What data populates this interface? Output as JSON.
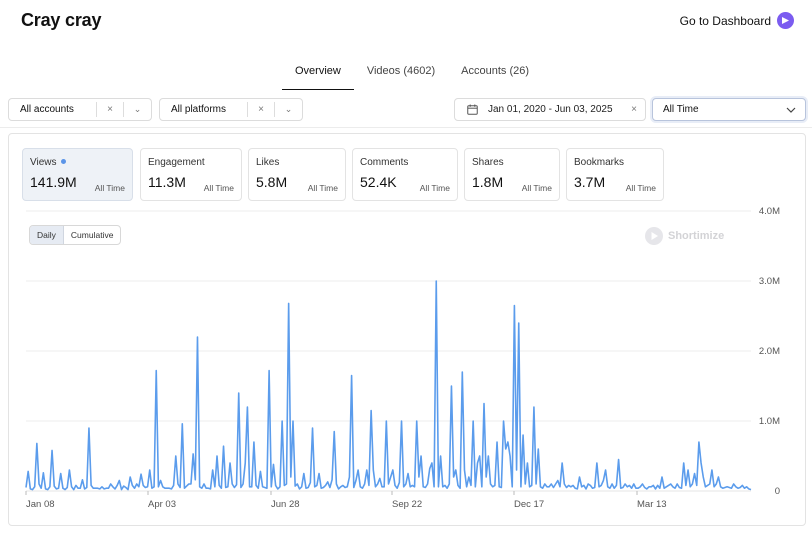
{
  "header": {
    "title": "Cray cray",
    "dashboard_link": "Go to Dashboard"
  },
  "tabs": [
    {
      "label": "Overview",
      "active": true
    },
    {
      "label": "Videos (4602)",
      "active": false
    },
    {
      "label": "Accounts (26)",
      "active": false
    }
  ],
  "filters": {
    "accounts": "All accounts",
    "platforms": "All platforms",
    "date_range": "Jan 01, 2020 - Jun 03, 2025",
    "time_range": "All Time"
  },
  "icons": {
    "clear": "×",
    "chevron": "⌄",
    "calendar": "calendar-icon"
  },
  "metrics": [
    {
      "name": "Views",
      "value": "141.9M",
      "period": "All Time",
      "active": true
    },
    {
      "name": "Engagement",
      "value": "11.3M",
      "period": "All Time"
    },
    {
      "name": "Likes",
      "value": "5.8M",
      "period": "All Time"
    },
    {
      "name": "Comments",
      "value": "52.4K",
      "period": "All Time"
    },
    {
      "name": "Shares",
      "value": "1.8M",
      "period": "All Time"
    },
    {
      "name": "Bookmarks",
      "value": "3.7M",
      "period": "All Time"
    }
  ],
  "chart_toggle": {
    "daily": "Daily",
    "cumulative": "Cumulative"
  },
  "watermark": "Shortimize",
  "colors": {
    "line": "#5b9cec",
    "accent": "#7b5cf0"
  },
  "chart_data": {
    "type": "line",
    "x_tick_labels": [
      "Jan 08",
      "Apr 03",
      "Jun 28",
      "Sep 22",
      "Dec 17",
      "Mar 13"
    ],
    "y_tick_labels": [
      "0",
      "1.0M",
      "2.0M",
      "3.0M",
      "4.0M"
    ],
    "ylim": [
      0,
      4000000
    ],
    "grid": true,
    "series": [
      {
        "values": [
          50000,
          280000,
          30000,
          20000,
          60000,
          680000,
          100000,
          40000,
          260000,
          30000,
          20000,
          60000,
          580000,
          70000,
          30000,
          40000,
          250000,
          40000,
          20000,
          50000,
          300000,
          60000,
          20000,
          80000,
          40000,
          40000,
          160000,
          30000,
          50000,
          900000,
          80000,
          40000,
          40000,
          40000,
          30000,
          60000,
          30000,
          40000,
          40000,
          100000,
          60000,
          30000,
          80000,
          150000,
          20000,
          70000,
          50000,
          20000,
          200000,
          80000,
          40000,
          100000,
          60000,
          240000,
          80000,
          50000,
          60000,
          300000,
          40000,
          60000,
          1720000,
          60000,
          150000,
          60000,
          40000,
          40000,
          40000,
          30000,
          80000,
          500000,
          100000,
          50000,
          960000,
          40000,
          70000,
          100000,
          100000,
          530000,
          160000,
          2200000,
          60000,
          40000,
          100000,
          40000,
          40000,
          30000,
          300000,
          60000,
          500000,
          80000,
          40000,
          640000,
          50000,
          60000,
          400000,
          100000,
          50000,
          90000,
          1400000,
          50000,
          100000,
          400000,
          1200000,
          60000,
          60000,
          700000,
          80000,
          40000,
          280000,
          60000,
          50000,
          40000,
          1720000,
          60000,
          380000,
          80000,
          30000,
          60000,
          1000000,
          80000,
          100000,
          2680000,
          200000,
          1000000,
          70000,
          100000,
          30000,
          60000,
          250000,
          40000,
          50000,
          120000,
          900000,
          60000,
          80000,
          250000,
          40000,
          50000,
          80000,
          130000,
          50000,
          160000,
          850000,
          100000,
          30000,
          60000,
          80000,
          50000,
          60000,
          200000,
          1650000,
          50000,
          150000,
          300000,
          60000,
          40000,
          100000,
          300000,
          80000,
          1150000,
          300000,
          60000,
          100000,
          180000,
          60000,
          60000,
          1000000,
          100000,
          200000,
          300000,
          80000,
          40000,
          120000,
          1000000,
          60000,
          100000,
          250000,
          60000,
          80000,
          60000,
          1000000,
          200000,
          500000,
          60000,
          50000,
          100000,
          320000,
          400000,
          60000,
          3000000,
          60000,
          500000,
          60000,
          80000,
          40000,
          100000,
          1500000,
          200000,
          300000,
          80000,
          40000,
          1700000,
          300000,
          60000,
          200000,
          80000,
          1000000,
          60000,
          400000,
          500000,
          60000,
          1250000,
          200000,
          500000,
          100000,
          60000,
          80000,
          700000,
          60000,
          50000,
          1000000,
          600000,
          700000,
          500000,
          60000,
          2650000,
          300000,
          2400000,
          60000,
          800000,
          100000,
          400000,
          60000,
          80000,
          1200000,
          100000,
          600000,
          60000,
          40000,
          100000,
          60000,
          60000,
          100000,
          50000,
          100000,
          150000,
          60000,
          400000,
          100000,
          50000,
          80000,
          60000,
          80000,
          40000,
          30000,
          200000,
          60000,
          80000,
          30000,
          100000,
          80000,
          40000,
          50000,
          400000,
          60000,
          80000,
          150000,
          300000,
          60000,
          40000,
          100000,
          40000,
          80000,
          450000,
          40000,
          50000,
          100000,
          60000,
          80000,
          40000,
          100000,
          40000,
          40000,
          60000,
          100000,
          50000,
          30000,
          60000,
          60000,
          80000,
          30000,
          80000,
          40000,
          200000,
          40000,
          60000,
          80000,
          100000,
          60000,
          40000,
          100000,
          50000,
          40000,
          400000,
          80000,
          300000,
          60000,
          100000,
          250000,
          80000,
          700000,
          400000,
          200000,
          60000,
          80000,
          100000,
          300000,
          60000,
          100000,
          200000,
          60000,
          40000,
          50000,
          60000,
          50000,
          40000,
          100000,
          60000,
          40000,
          50000,
          80000,
          40000,
          60000,
          30000,
          20000
        ]
      }
    ]
  }
}
